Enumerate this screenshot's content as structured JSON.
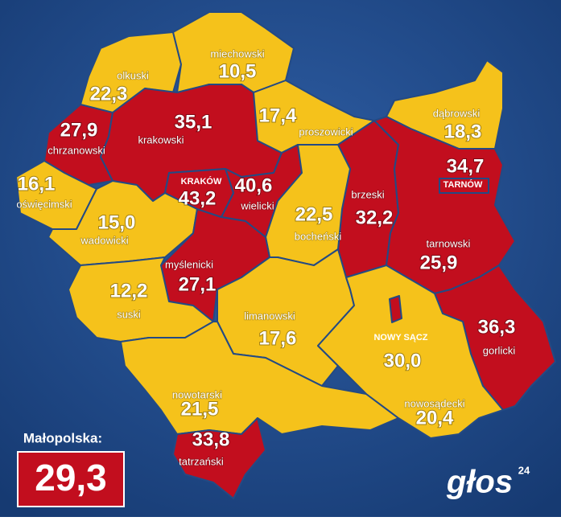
{
  "regions": [
    {
      "name": "olkuski",
      "value": "22,3",
      "color": "#f5c21b"
    },
    {
      "name": "miechowski",
      "value": "10,5",
      "color": "#f5c21b"
    },
    {
      "name": "chrzanowski",
      "value": "27,9",
      "color": "#c20e1e"
    },
    {
      "name": "krakowski",
      "value": "35,1",
      "color": "#c20e1e"
    },
    {
      "name": "proszowicki",
      "value": "17,4",
      "color": "#f5c21b"
    },
    {
      "name": "dąbrowski",
      "value": "18,3",
      "color": "#f5c21b"
    },
    {
      "name": "oświęcimski",
      "value": "16,1",
      "color": "#f5c21b"
    },
    {
      "name": "KRAKÓW",
      "value": "43,2",
      "color": "#c20e1e"
    },
    {
      "name": "wielicki",
      "value": "40,6",
      "color": "#c20e1e"
    },
    {
      "name": "TARNÓW",
      "value": "34,7",
      "color": "#c20e1e"
    },
    {
      "name": "brzeski",
      "value": "32,2",
      "color": "#c20e1e"
    },
    {
      "name": "bocheński",
      "value": "22,5",
      "color": "#f5c21b"
    },
    {
      "name": "wadowicki",
      "value": "15,0",
      "color": "#f5c21b"
    },
    {
      "name": "tarnowski",
      "value": "25,9",
      "color": "#c20e1e"
    },
    {
      "name": "myślenicki",
      "value": "27,1",
      "color": "#c20e1e"
    },
    {
      "name": "suski",
      "value": "12,2",
      "color": "#f5c21b"
    },
    {
      "name": "limanowski",
      "value": "17,6",
      "color": "#f5c21b"
    },
    {
      "name": "NOWY SĄCZ",
      "value": "30,0",
      "color": "#c20e1e"
    },
    {
      "name": "gorlicki",
      "value": "36,3",
      "color": "#c20e1e"
    },
    {
      "name": "nowotarski",
      "value": "21,5",
      "color": "#f5c21b"
    },
    {
      "name": "nowosądecki",
      "value": "20,4",
      "color": "#f5c21b"
    },
    {
      "name": "tatrzański",
      "value": "33,8",
      "color": "#c20e1e"
    }
  ],
  "summary": {
    "label": "Małopolska:",
    "value": "29,3"
  },
  "logo": {
    "text": "głos",
    "superscript": "24"
  }
}
